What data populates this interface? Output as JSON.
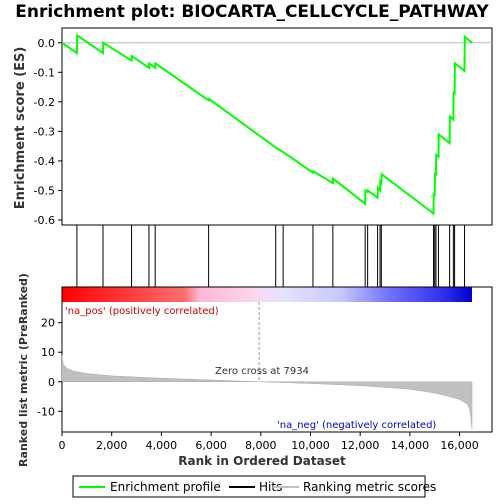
{
  "chart_data": {
    "type": "line",
    "title": "Enrichment plot: BIOCARTA_CELLCYCLE_PATHWAY",
    "top_panel": {
      "ylabel": "Enrichment score (ES)",
      "ylim": [
        -0.6,
        0.05
      ],
      "yticks": [
        "0.0",
        "-0.1",
        "-0.2",
        "-0.3",
        "-0.4",
        "-0.5",
        "-0.6"
      ],
      "ytick_values": [
        0.0,
        -0.1,
        -0.2,
        -0.3,
        -0.4,
        -0.5,
        -0.6
      ],
      "series": [
        {
          "name": "Enrichment profile",
          "color": "#00ff00",
          "x": [
            0,
            600,
            610,
            1650,
            1660,
            2800,
            2810,
            3500,
            3510,
            3750,
            3760,
            5900,
            5910,
            8600,
            8900,
            10100,
            10110,
            10900,
            10910,
            12200,
            12210,
            12300,
            12310,
            12700,
            12710,
            12800,
            12810,
            12850,
            12860,
            14950,
            14960,
            15000,
            15010,
            15050,
            15060,
            15150,
            15160,
            15600,
            15610,
            15750,
            15760,
            15800,
            15810,
            16200,
            16210,
            16500
          ],
          "y": [
            0.0,
            -0.035,
            0.025,
            -0.035,
            0.0,
            -0.06,
            -0.045,
            -0.085,
            -0.07,
            -0.085,
            -0.07,
            -0.195,
            -0.19,
            -0.355,
            -0.37,
            -0.44,
            -0.435,
            -0.475,
            -0.46,
            -0.545,
            -0.5,
            -0.505,
            -0.5,
            -0.525,
            -0.49,
            -0.5,
            -0.47,
            -0.475,
            -0.445,
            -0.578,
            -0.51,
            -0.52,
            -0.44,
            -0.45,
            -0.38,
            -0.385,
            -0.31,
            -0.34,
            -0.25,
            -0.26,
            -0.165,
            -0.175,
            -0.07,
            -0.095,
            0.02,
            0.0
          ]
        }
      ]
    },
    "hits": [
      600,
      1650,
      2800,
      3500,
      3750,
      5900,
      8600,
      8900,
      10100,
      10900,
      12200,
      12300,
      12700,
      12800,
      12850,
      14950,
      15000,
      15050,
      15150,
      15600,
      15750,
      15800,
      16200
    ],
    "ranking_bar": {
      "labels": {
        "positive": "'na_pos' (positively correlated)",
        "negative": "'na_neg' (negatively correlated)"
      },
      "colors": [
        "#ff0000",
        "#ffb6c1",
        "#ffffff",
        "#c0c0ff",
        "#0000cc"
      ]
    },
    "bottom_panel": {
      "ylabel": "Ranked list metric (PreRanked)",
      "xlabel": "Rank in Ordered Dataset",
      "ylim": [
        -17,
        27
      ],
      "yticks": [
        "20",
        "10",
        "0",
        "-10"
      ],
      "ytick_values": [
        20,
        10,
        0,
        -10
      ],
      "xticks": [
        "0",
        "2,000",
        "4,000",
        "6,000",
        "8,000",
        "10,000",
        "12,000",
        "14,000",
        "16,000"
      ],
      "xtick_values": [
        0,
        2000,
        4000,
        6000,
        8000,
        10000,
        12000,
        14000,
        16000
      ],
      "xlim": [
        0,
        16500
      ],
      "zero_cross_label": "Zero cross at 7934",
      "zero_cross": 7934,
      "metric_x": [
        0,
        50,
        200,
        500,
        1000,
        2000,
        4000,
        6000,
        7934,
        10000,
        12000,
        14000,
        15000,
        15500,
        16000,
        16300,
        16400,
        16450,
        16500
      ],
      "metric_y": [
        9.0,
        6.0,
        4.5,
        3.5,
        2.8,
        2.0,
        1.2,
        0.6,
        0.0,
        -0.6,
        -1.3,
        -2.5,
        -3.8,
        -4.8,
        -6.0,
        -7.5,
        -9.0,
        -12.0,
        -16.0
      ]
    },
    "legend": [
      {
        "label": "Enrichment profile",
        "color": "#00ff00"
      },
      {
        "label": "Hits",
        "color": "#000000"
      },
      {
        "label": "Ranking metric scores",
        "color": "#c0c0c0"
      }
    ]
  }
}
